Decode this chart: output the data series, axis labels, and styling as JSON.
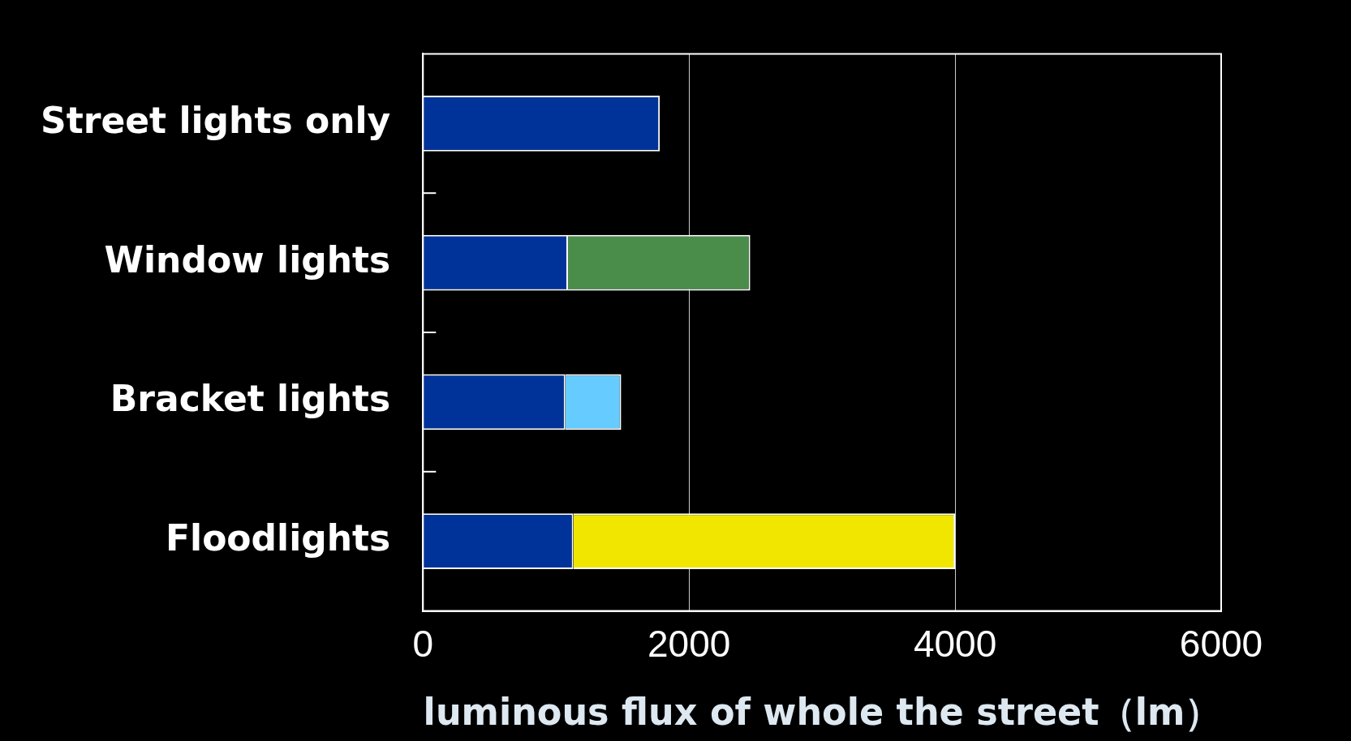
{
  "chart_data": {
    "type": "bar",
    "orientation": "horizontal",
    "stacked": true,
    "xlabel": "luminous flux of whole the street（lm）",
    "categories": [
      "Street lights only",
      "Window lights",
      "Bracket lights",
      "Floodlights"
    ],
    "series": [
      {
        "color": "#003399",
        "values": [
          1780,
          1090,
          1070,
          1130
        ]
      },
      {
        "color": "#4a8c4a",
        "values": [
          null,
          1370,
          null,
          null
        ]
      },
      {
        "color": "#66ccff",
        "values": [
          null,
          null,
          420,
          null
        ]
      },
      {
        "color": "#f0e600",
        "values": [
          null,
          null,
          null,
          2870
        ]
      }
    ],
    "xlim": [
      0,
      6000
    ],
    "xticks": [
      0,
      2000,
      4000,
      6000
    ],
    "grid": "x",
    "legend": false
  }
}
